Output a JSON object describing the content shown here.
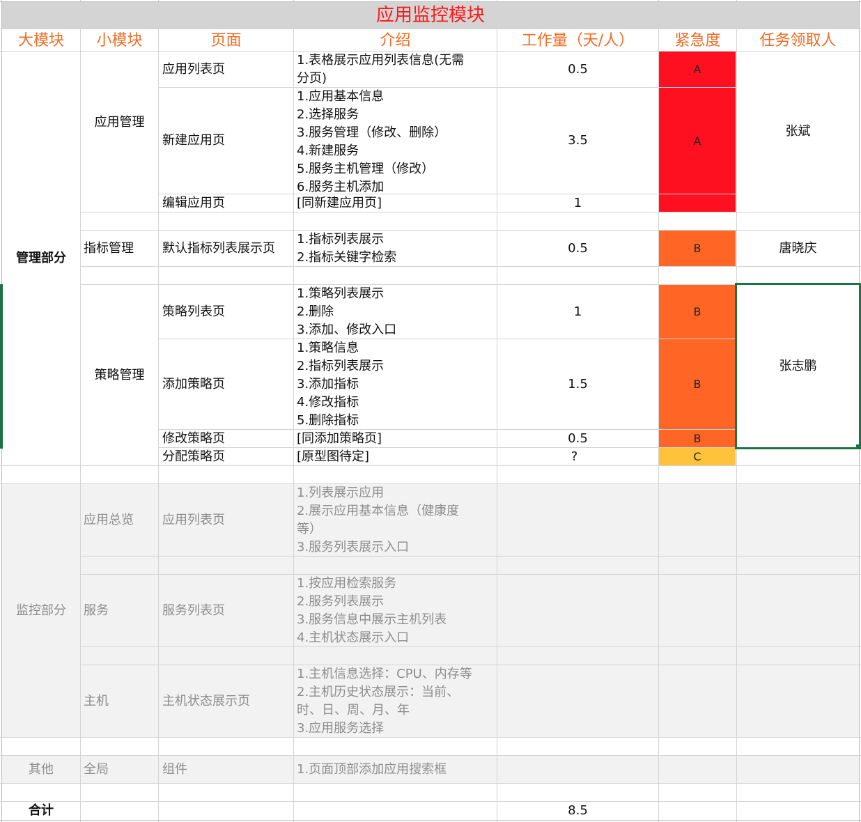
{
  "title": "应用监控模块",
  "headers": {
    "big_module": "大模块",
    "small_module": "小模块",
    "page": "页面",
    "intro": "介绍",
    "workload": "工作量（天/人）",
    "urgency": "紧急度",
    "assignee": "任务领取人"
  },
  "management": {
    "label": "管理部分",
    "app_mgmt": {
      "label": "应用管理",
      "assignee": "张斌",
      "rows": [
        {
          "page": "应用列表页",
          "intro": "1.表格展示应用列表信息(无需\n分页)",
          "workload": "0.5",
          "urgency": "A"
        },
        {
          "page": "新建应用页",
          "intro": "1.应用基本信息\n2.选择服务\n3.服务管理（修改、删除）\n4.新建服务\n5.服务主机管理（修改）\n6.服务主机添加",
          "workload": "3.5",
          "urgency": "A"
        },
        {
          "page": "编辑应用页",
          "intro": "[同新建应用页]",
          "workload": "1",
          "urgency": ""
        }
      ]
    },
    "metric_mgmt": {
      "label": "指标管理",
      "assignee": "唐晓庆",
      "rows": [
        {
          "page": "默认指标列表展示页",
          "intro": "1.指标列表展示\n2.指标关键字检索",
          "workload": "0.5",
          "urgency": "B"
        }
      ]
    },
    "policy_mgmt": {
      "label": "策略管理",
      "assignee": "张志鹏",
      "rows": [
        {
          "page": "策略列表页",
          "intro": "1.策略列表展示\n2.删除\n3.添加、修改入口",
          "workload": "1",
          "urgency": "B"
        },
        {
          "page": "添加策略页",
          "intro": "1.策略信息\n2.指标列表展示\n3.添加指标\n4.修改指标\n5.删除指标",
          "workload": "1.5",
          "urgency": "B"
        },
        {
          "page": "修改策略页",
          "intro": "[同添加策略页]",
          "workload": "0.5",
          "urgency": "B"
        },
        {
          "page": "分配策略页",
          "intro": "[原型图待定]",
          "workload": "?",
          "urgency": "C"
        }
      ]
    }
  },
  "monitoring": {
    "label": "监控部分",
    "app_overview": {
      "label": "应用总览",
      "page": "应用列表页",
      "intro": "1.列表展示应用\n2.展示应用基本信息（健康度\n等）\n3.服务列表展示入口"
    },
    "service": {
      "label": "服务",
      "page": "服务列表页",
      "intro": "1.按应用检索服务\n2.服务列表展示\n3.服务信息中展示主机列表\n4.主机状态展示入口"
    },
    "host": {
      "label": "主机",
      "page": "主机状态展示页",
      "intro": "1.主机信息选择：CPU、内存等\n2.主机历史状态展示：当前、\n时、日、周、月、年\n3.应用服务选择"
    }
  },
  "other": {
    "label": "其他",
    "small": "全局",
    "page": "组件",
    "intro": "1.页面顶部添加应用搜索框"
  },
  "total": {
    "label": "合计",
    "workload": "8.5"
  },
  "colors": {
    "title_red": "#ff1a1a",
    "header_orange": "#f26b22",
    "urgency_a": "#ff1020",
    "urgency_b": "#ff6625",
    "urgency_c": "#ffc23a",
    "selection_green": "#1f7244",
    "muted_gray": "#8d8d8d"
  }
}
